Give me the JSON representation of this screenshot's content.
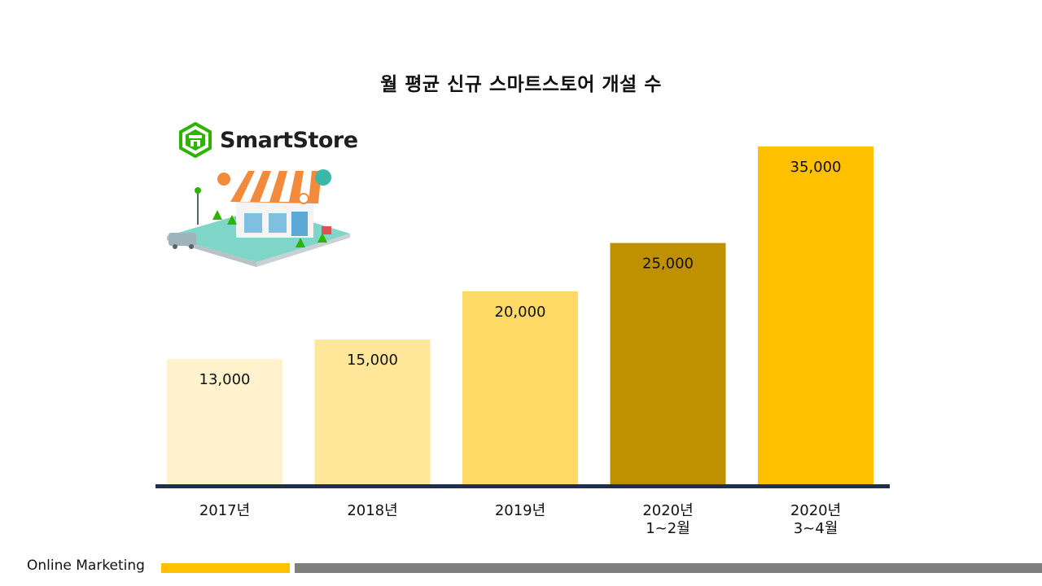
{
  "logo": {
    "icon": "smartstore-shop-icon",
    "text": "SmartStore",
    "color": "#2DB400"
  },
  "footer": {
    "label": "Online Marketing",
    "accent_color": "#FFC000",
    "rule_color": "#7F7F7F"
  },
  "chart_data": {
    "type": "bar",
    "title": "월 평균 신규 스마트스토어 개설 수",
    "xlabel": "",
    "ylabel": "",
    "categories": [
      [
        "2017년"
      ],
      [
        "2018년"
      ],
      [
        "2019년"
      ],
      [
        "2020년",
        "1~2월"
      ],
      [
        "2020년",
        "3~4월"
      ]
    ],
    "values": [
      13000,
      15000,
      20000,
      25000,
      35000
    ],
    "value_labels": [
      "13,000",
      "15,000",
      "20,000",
      "25,000",
      "35,000"
    ],
    "colors": [
      "#FFF2CC",
      "#FFE699",
      "#FFD966",
      "#BF9000",
      "#FFC000"
    ],
    "baseline_color": "#1F2D4F",
    "ylim": [
      0,
      35000
    ],
    "grid": false,
    "legend": "none"
  }
}
